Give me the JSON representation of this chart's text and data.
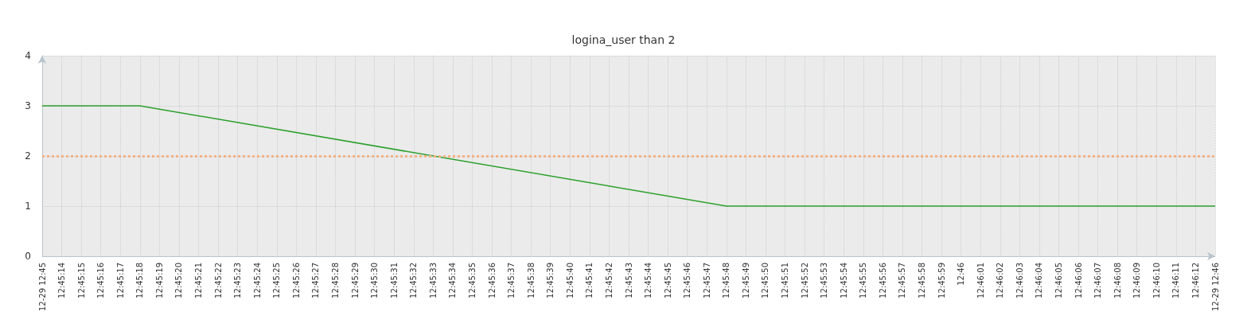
{
  "chart_data": {
    "type": "line",
    "title": "logina_user than 2",
    "categories": [
      "12-29 12:45",
      "12:45:14",
      "12:45:15",
      "12:45:16",
      "12:45:17",
      "12:45:18",
      "12:45:19",
      "12:45:20",
      "12:45:21",
      "12:45:22",
      "12:45:23",
      "12:45:24",
      "12:45:25",
      "12:45:26",
      "12:45:27",
      "12:45:28",
      "12:45:29",
      "12:45:30",
      "12:45:31",
      "12:45:32",
      "12:45:33",
      "12:45:34",
      "12:45:35",
      "12:45:36",
      "12:45:37",
      "12:45:38",
      "12:45:39",
      "12:45:40",
      "12:45:41",
      "12:45:42",
      "12:45:43",
      "12:45:44",
      "12:45:45",
      "12:45:46",
      "12:45:47",
      "12:45:48",
      "12:45:49",
      "12:45:50",
      "12:45:51",
      "12:45:52",
      "12:45:53",
      "12:45:54",
      "12:45:55",
      "12:45:56",
      "12:45:57",
      "12:45:58",
      "12:45:59",
      "12:46",
      "12:46:01",
      "12:46:02",
      "12:46:03",
      "12:46:04",
      "12:46:05",
      "12:46:06",
      "12:46:07",
      "12:46:08",
      "12:46:09",
      "12:46:10",
      "12:46:11",
      "12:46:12",
      "12-29 12:46"
    ],
    "series": [
      {
        "color": "#2ca02c",
        "values": [
          3,
          null,
          null,
          null,
          null,
          3,
          null,
          null,
          null,
          null,
          null,
          null,
          null,
          null,
          null,
          null,
          null,
          null,
          null,
          null,
          null,
          null,
          null,
          null,
          null,
          null,
          null,
          null,
          null,
          null,
          null,
          null,
          null,
          null,
          null,
          1,
          null,
          null,
          null,
          null,
          null,
          null,
          null,
          null,
          null,
          null,
          null,
          null,
          null,
          null,
          null,
          null,
          null,
          null,
          null,
          null,
          null,
          null,
          null,
          null,
          1
        ]
      }
    ],
    "ylim": [
      0,
      4
    ],
    "yticks": [
      0,
      1,
      2,
      3,
      4
    ],
    "grid": true,
    "marker": "none",
    "line_style": "solid",
    "ref_lines": [
      {
        "axis": "y",
        "value": 2,
        "color": "#f4b183",
        "line_style": "dotted"
      }
    ]
  }
}
